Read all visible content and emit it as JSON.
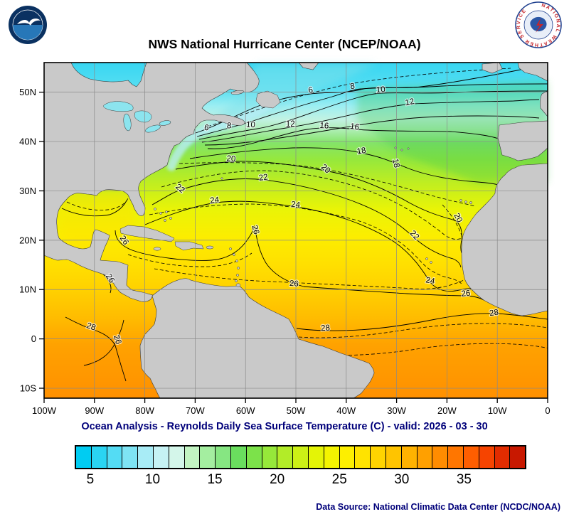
{
  "header": {
    "title": "NWS National Hurricane Center (NCEP/NOAA)"
  },
  "logos": {
    "nws_text": "NATIONAL WEATHER SERVICE"
  },
  "map": {
    "x_ticks": [
      "100W",
      "90W",
      "80W",
      "70W",
      "60W",
      "50W",
      "40W",
      "30W",
      "20W",
      "10W",
      "0"
    ],
    "y_ticks": [
      "50N",
      "40N",
      "30N",
      "20N",
      "10N",
      "0",
      "10S"
    ],
    "contour_labels": [
      {
        "v": "6",
        "lat": 49.9,
        "lon": -47.0,
        "rot": -10
      },
      {
        "v": "8",
        "lat": 50.7,
        "lon": -38.7,
        "rot": -8
      },
      {
        "v": "10",
        "lat": 50.0,
        "lon": -33.1,
        "rot": -5
      },
      {
        "v": "12",
        "lat": 47.5,
        "lon": -27.3,
        "rot": -12
      },
      {
        "v": "6",
        "lat": 42.3,
        "lon": -67.8,
        "rot": 8
      },
      {
        "v": "8",
        "lat": 42.7,
        "lon": -63.3,
        "rot": 5
      },
      {
        "v": "10",
        "lat": 42.9,
        "lon": -59.0,
        "rot": 3
      },
      {
        "v": "12",
        "lat": 43.0,
        "lon": -51.1,
        "rot": 0
      },
      {
        "v": "16",
        "lat": 42.7,
        "lon": -44.4,
        "rot": 5
      },
      {
        "v": "16",
        "lat": 42.5,
        "lon": -38.4,
        "rot": 8
      },
      {
        "v": "18",
        "lat": 37.6,
        "lon": -36.9,
        "rot": -10
      },
      {
        "v": "18",
        "lat": 35.5,
        "lon": -30.6,
        "rot": 78
      },
      {
        "v": "20",
        "lat": 36.0,
        "lon": -62.9,
        "rot": 5
      },
      {
        "v": "20",
        "lat": 34.1,
        "lon": -44.4,
        "rot": 42
      },
      {
        "v": "20",
        "lat": 24.3,
        "lon": -18.2,
        "rot": 62
      },
      {
        "v": "22",
        "lat": 30.1,
        "lon": -73.3,
        "rot": 40
      },
      {
        "v": "22",
        "lat": 32.2,
        "lon": -56.4,
        "rot": -8
      },
      {
        "v": "22",
        "lat": 20.7,
        "lon": -26.8,
        "rot": 48
      },
      {
        "v": "24",
        "lat": 27.6,
        "lon": -66.1,
        "rot": -6
      },
      {
        "v": "24",
        "lat": 26.7,
        "lon": -50.1,
        "rot": 6
      },
      {
        "v": "24",
        "lat": 11.3,
        "lon": -23.4,
        "rot": 10
      },
      {
        "v": "26",
        "lat": 19.7,
        "lon": -84.5,
        "rot": 55
      },
      {
        "v": "26",
        "lat": 22.0,
        "lon": -58.5,
        "rot": 76
      },
      {
        "v": "26",
        "lat": 10.7,
        "lon": -50.4,
        "rot": 4
      },
      {
        "v": "26",
        "lat": 8.7,
        "lon": -16.2,
        "rot": -6
      },
      {
        "v": "26",
        "lat": -0.3,
        "lon": -85.9,
        "rot": 72
      },
      {
        "v": "26",
        "lat": 12.0,
        "lon": -87.3,
        "rot": 58
      },
      {
        "v": "28",
        "lat": 2.0,
        "lon": -90.8,
        "rot": 18
      },
      {
        "v": "28",
        "lat": 1.7,
        "lon": -44.1,
        "rot": -4
      },
      {
        "v": "28",
        "lat": 4.8,
        "lon": -10.6,
        "rot": -8
      }
    ]
  },
  "subtitle": "Ocean Analysis - Reynolds Daily Sea Surface Temperature (C) - valid: 2026 - 03 - 30",
  "colorbar": {
    "min": 3.75,
    "max": 40,
    "tick_values": [
      5,
      10,
      15,
      20,
      25,
      30,
      35
    ],
    "colors": [
      "#00ccf2",
      "#2ad4f2",
      "#54dcf4",
      "#7ee4f4",
      "#a8ecf6",
      "#c6f2f4",
      "#d4f6ea",
      "#c2f4c2",
      "#a4eea0",
      "#86e682",
      "#6ade5e",
      "#7ce24a",
      "#96e83a",
      "#b2ec28",
      "#ccf016",
      "#e4f406",
      "#f4f400",
      "#fdef00",
      "#ffe300",
      "#ffd400",
      "#ffc400",
      "#ffb200",
      "#ffa000",
      "#ff8c00",
      "#ff7600",
      "#ff5e00",
      "#f64400",
      "#e22c00",
      "#c81800"
    ]
  },
  "footer": {
    "source": "Data Source: National Climatic Data Center (NCDC/NOAA)"
  },
  "chart_data": {
    "type": "heatmap",
    "title": "NWS National Hurricane Center (NCEP/NOAA)",
    "subtitle": "Ocean Analysis - Reynolds Daily Sea Surface Temperature (C) - valid: 2026 - 03 - 30",
    "variable": "Sea Surface Temperature",
    "units": "C",
    "x_axis": {
      "label": "longitude",
      "ticks": [
        "100W",
        "90W",
        "80W",
        "70W",
        "60W",
        "50W",
        "40W",
        "30W",
        "20W",
        "10W",
        "0"
      ]
    },
    "y_axis": {
      "label": "latitude",
      "ticks": [
        "50N",
        "40N",
        "30N",
        "20N",
        "10N",
        "0",
        "10S"
      ]
    },
    "colorbar_ticks": [
      5,
      10,
      15,
      20,
      25,
      30,
      35
    ],
    "labeled_isotherms_c": [
      6,
      8,
      10,
      12,
      16,
      18,
      20,
      22,
      24,
      26,
      28
    ],
    "source": "Data Source: National Climatic Data Center (NCDC/NOAA)"
  }
}
